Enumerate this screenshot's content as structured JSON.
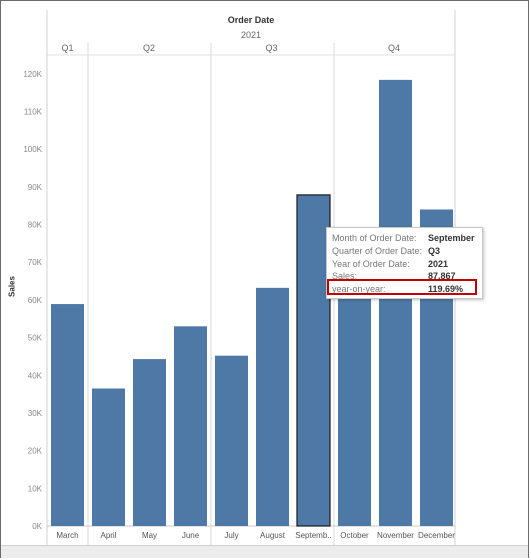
{
  "header": {
    "title": "Order Date",
    "year": "2021"
  },
  "quarters": [
    "Q1",
    "Q2",
    "Q3",
    "Q4"
  ],
  "chart_data": {
    "type": "bar",
    "title": "Order Date",
    "xlabel": "",
    "ylabel": "Sales",
    "ylim": [
      0,
      125000
    ],
    "yticks": [
      "0K",
      "10K",
      "20K",
      "30K",
      "40K",
      "50K",
      "60K",
      "70K",
      "80K",
      "90K",
      "100K",
      "110K",
      "120K"
    ],
    "categories": [
      "March",
      "April",
      "May",
      "June",
      "July",
      "August",
      "Septemb..",
      "October",
      "November",
      "December"
    ],
    "values": [
      58900,
      36500,
      44300,
      53000,
      45200,
      63200,
      87867,
      61000,
      118400,
      84000
    ],
    "bar_color": "#4e79a7",
    "selected_index": 6
  },
  "tooltip": {
    "rows": [
      {
        "label": "Month of Order Date:",
        "value": "September"
      },
      {
        "label": "Quarter of Order Date:",
        "value": "Q3"
      },
      {
        "label": "Year of Order Date:",
        "value": "2021"
      },
      {
        "label": "Sales:",
        "value": "87,867"
      },
      {
        "label": "year-on-year:",
        "value": "119.69%"
      }
    ],
    "highlight_color": "#c00000"
  }
}
